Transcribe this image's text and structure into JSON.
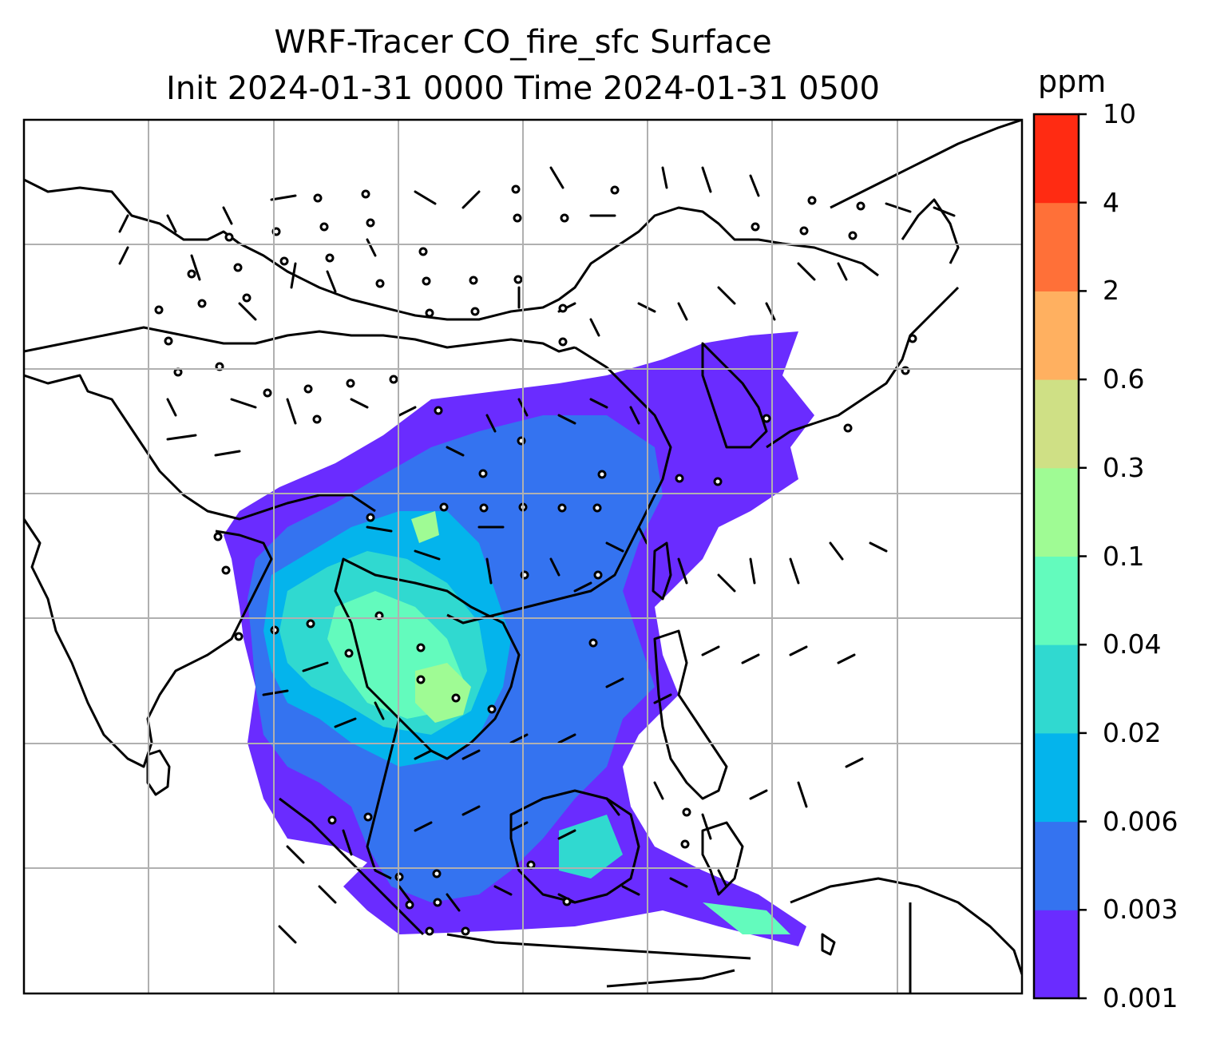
{
  "title": {
    "line1": "WRF-Tracer CO_fire_sfc Surface",
    "line2": "Init 2024-01-31 0000 Time 2024-01-31 0500"
  },
  "colorbar": {
    "unit": "ppm",
    "levels": [
      "0.001",
      "0.003",
      "0.006",
      "0.02",
      "0.04",
      "0.1",
      "0.3",
      "0.6",
      "2",
      "4",
      "10"
    ],
    "colors": [
      "#6a2cff",
      "#3473f0",
      "#04b4ec",
      "#30d9d0",
      "#63fbbd",
      "#9ffb94",
      "#cfe085",
      "#ffb060",
      "#ff7038",
      "#ff2b12"
    ]
  },
  "map": {
    "gridlines": true,
    "coastline_color": "#000000",
    "wind_barbs": true,
    "calm_markers": true
  }
}
